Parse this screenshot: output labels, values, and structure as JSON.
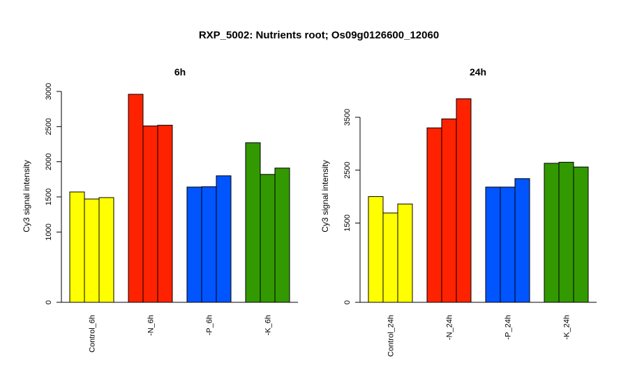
{
  "chart_data": {
    "type": "bar",
    "title": "RXP_5002: Nutrients root; Os09g0126600_12060",
    "ylabel": "Cy3 signal intensity",
    "colors": {
      "Control": "#ffff00",
      "-N": "#ff2200",
      "-P": "#0055ff",
      "-K": "#339900"
    },
    "panels": [
      {
        "title": "6h",
        "ylim": [
          0,
          3000
        ],
        "yticks": [
          "0",
          "1000",
          "1500",
          "2000",
          "2500",
          "3000"
        ],
        "groups": [
          {
            "label": "Control_6h",
            "values": [
              1570,
              1470,
              1490
            ]
          },
          {
            "label": "-N_6h",
            "values": [
              2960,
              2510,
              2520
            ]
          },
          {
            "label": "-P_6h",
            "values": [
              1640,
              1645,
              1800
            ]
          },
          {
            "label": "-K_6h",
            "values": [
              2270,
              1820,
              1910
            ]
          }
        ]
      },
      {
        "title": "24h",
        "ylim": [
          0,
          3900
        ],
        "yticks": [
          "0",
          "1500",
          "2500",
          "3500"
        ],
        "groups": [
          {
            "label": "Control_24h",
            "values": [
              2000,
              1690,
              1860
            ]
          },
          {
            "label": "-N_24h",
            "values": [
              3300,
              3470,
              3850
            ]
          },
          {
            "label": "-P_24h",
            "values": [
              2180,
              2180,
              2340
            ]
          },
          {
            "label": "-K_24h",
            "values": [
              2630,
              2650,
              2560
            ]
          }
        ]
      }
    ]
  }
}
